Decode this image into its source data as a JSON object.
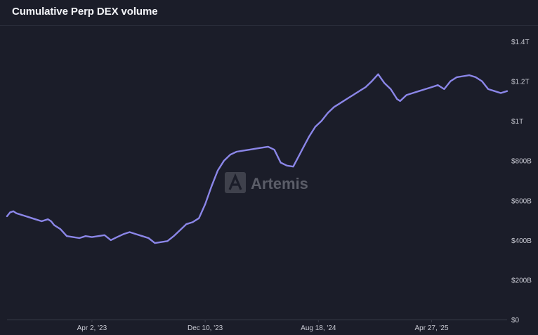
{
  "header": {
    "title": "Cumulative Perp DEX volume"
  },
  "watermark": {
    "brand": "Artemis",
    "icon": "artemis-logo-icon"
  },
  "colors": {
    "background": "#1b1d29",
    "line": "#8b86e8",
    "axis": "#3a3d4a",
    "tick_text": "#c9cad3",
    "watermark": "#5b5d68"
  },
  "chart_data": {
    "type": "line",
    "title": "Cumulative Perp DEX volume",
    "xlabel": "",
    "ylabel": "",
    "y_unit": "USD",
    "y_ticks": [
      0,
      200000000000,
      400000000000,
      600000000000,
      800000000000,
      1000000000000,
      1200000000000,
      1400000000000
    ],
    "y_tick_labels": [
      "$0",
      "$200B",
      "$400B",
      "$600B",
      "$800B",
      "$1T",
      "$1.2T",
      "$1.4T"
    ],
    "ylim": [
      0,
      1400000000000
    ],
    "xlim": [
      "2022-09-25",
      "2025-10-12"
    ],
    "x_ticks": [
      "2023-04-02",
      "2023-12-10",
      "2024-08-18",
      "2025-04-27"
    ],
    "x_tick_labels": [
      "Apr 2, '23",
      "Dec 10, '23",
      "Aug 18, '24",
      "Apr 27, '25"
    ],
    "grid": false,
    "legend": "none",
    "series": [
      {
        "x": [
          "2022-09-25",
          "2022-10-02",
          "2022-10-09",
          "2022-10-16",
          "2022-10-30",
          "2022-11-13",
          "2022-11-27",
          "2022-12-11",
          "2022-12-25",
          "2023-01-01",
          "2023-01-08",
          "2023-01-22",
          "2023-02-05",
          "2023-02-19",
          "2023-03-05",
          "2023-03-19",
          "2023-04-02",
          "2023-04-16",
          "2023-04-30",
          "2023-05-14",
          "2023-05-28",
          "2023-06-11",
          "2023-06-25",
          "2023-07-09",
          "2023-07-23",
          "2023-08-06",
          "2023-08-20",
          "2023-09-03",
          "2023-09-17",
          "2023-10-01",
          "2023-10-15",
          "2023-10-29",
          "2023-11-12",
          "2023-11-26",
          "2023-12-10",
          "2023-12-24",
          "2024-01-07",
          "2024-01-21",
          "2024-02-04",
          "2024-02-18",
          "2024-03-03",
          "2024-03-17",
          "2024-03-31",
          "2024-04-14",
          "2024-04-28",
          "2024-05-12",
          "2024-05-26",
          "2024-06-09",
          "2024-06-23",
          "2024-07-07",
          "2024-07-14",
          "2024-07-28",
          "2024-08-11",
          "2024-08-25",
          "2024-09-08",
          "2024-09-22",
          "2024-10-06",
          "2024-10-20",
          "2024-11-03",
          "2024-11-17",
          "2024-12-01",
          "2024-12-15",
          "2024-12-29",
          "2025-01-12",
          "2025-01-26",
          "2025-02-09",
          "2025-02-16",
          "2025-03-02",
          "2025-03-16",
          "2025-03-30",
          "2025-04-13",
          "2025-04-27",
          "2025-05-11",
          "2025-05-25",
          "2025-06-08",
          "2025-06-22",
          "2025-07-06",
          "2025-07-20",
          "2025-08-03",
          "2025-08-17",
          "2025-08-31",
          "2025-09-14",
          "2025-09-28",
          "2025-10-12"
        ],
        "y": [
          520000000000,
          540000000000,
          545000000000,
          535000000000,
          525000000000,
          515000000000,
          505000000000,
          495000000000,
          505000000000,
          495000000000,
          475000000000,
          455000000000,
          420000000000,
          415000000000,
          410000000000,
          420000000000,
          415000000000,
          420000000000,
          425000000000,
          400000000000,
          415000000000,
          430000000000,
          440000000000,
          430000000000,
          420000000000,
          410000000000,
          385000000000,
          390000000000,
          395000000000,
          420000000000,
          450000000000,
          480000000000,
          490000000000,
          510000000000,
          580000000000,
          670000000000,
          750000000000,
          800000000000,
          830000000000,
          845000000000,
          850000000000,
          855000000000,
          860000000000,
          865000000000,
          870000000000,
          855000000000,
          790000000000,
          775000000000,
          770000000000,
          830000000000,
          860000000000,
          920000000000,
          970000000000,
          1000000000000,
          1040000000000,
          1070000000000,
          1090000000000,
          1110000000000,
          1130000000000,
          1150000000000,
          1170000000000,
          1200000000000,
          1235000000000,
          1190000000000,
          1160000000000,
          1110000000000,
          1100000000000,
          1130000000000,
          1140000000000,
          1150000000000,
          1160000000000,
          1170000000000,
          1180000000000,
          1160000000000,
          1200000000000,
          1220000000000,
          1225000000000,
          1230000000000,
          1220000000000,
          1200000000000,
          1160000000000,
          1150000000000,
          1140000000000,
          1150000000000
        ]
      }
    ]
  }
}
